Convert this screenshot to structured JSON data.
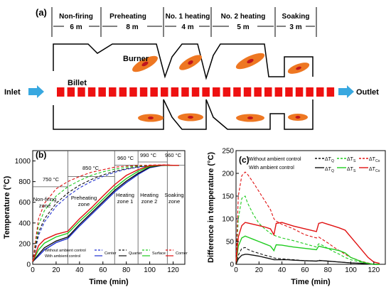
{
  "panel_a": {
    "label": "(a)",
    "zones": [
      {
        "name": "Non-firing",
        "length": "6 m"
      },
      {
        "name": "Preheating",
        "length": "8 m"
      },
      {
        "name": "No. 1 heating",
        "length": "4 m"
      },
      {
        "name": "No. 2 heating",
        "length": "5 m"
      },
      {
        "name": "Soaking",
        "length": "3 m"
      }
    ],
    "burner_label": "Burner",
    "billet_label": "Billet",
    "inlet_label": "Inlet",
    "outlet_label": "Outlet",
    "colors": {
      "billet": "#ee1111",
      "flame": "#ee7722",
      "arrow": "#38a8e0"
    }
  },
  "chart_data": [
    {
      "type": "line",
      "panel_label": "(b)",
      "xlabel": "Time (min)",
      "ylabel": "Temperature (°C)",
      "xlim": [
        0,
        130
      ],
      "ylim": [
        0,
        1100
      ],
      "xticks": [
        0,
        20,
        40,
        60,
        80,
        100,
        120
      ],
      "yticks": [
        0,
        200,
        400,
        600,
        800,
        1000
      ],
      "zone_dividers": [
        30,
        70,
        90,
        115
      ],
      "zone_labels": [
        {
          "line1": "Non-firing",
          "line2": "zone"
        },
        {
          "line1": "Preheating",
          "line2": "zone"
        },
        {
          "line1": "Heating",
          "line2": "zone 1"
        },
        {
          "line1": "Heating",
          "line2": "zone 2"
        },
        {
          "line1": "Soaking",
          "line2": "zone"
        }
      ],
      "setpoint_labels": [
        "750 °C",
        "850 °C",
        "960 °C",
        "990 °C",
        "960 °C"
      ],
      "setpoints": [
        {
          "from": 0,
          "to": 30,
          "value": 750
        },
        {
          "from": 30,
          "to": 70,
          "value": 850
        },
        {
          "from": 70,
          "to": 90,
          "value": 960
        },
        {
          "from": 90,
          "to": 115,
          "value": 990
        },
        {
          "from": 115,
          "to": 130,
          "value": 960
        }
      ],
      "legend": {
        "row1": "Without ambient control",
        "row2": "With ambient control",
        "entries": [
          "Center",
          "Quarter",
          "Surface",
          "Corner"
        ]
      },
      "x": [
        0,
        5,
        10,
        20,
        30,
        40,
        50,
        60,
        70,
        80,
        90,
        100,
        110,
        115,
        120,
        125
      ],
      "series": [
        {
          "name": "Center",
          "group": "Without ambient control",
          "color": "#1f2fd0",
          "dash": true,
          "values": [
            25,
            280,
            410,
            560,
            660,
            740,
            800,
            850,
            890,
            920,
            940,
            952,
            958,
            960,
            958,
            958
          ]
        },
        {
          "name": "Quarter",
          "group": "Without ambient control",
          "color": "#111111",
          "dash": true,
          "values": [
            25,
            310,
            440,
            590,
            690,
            765,
            820,
            865,
            900,
            925,
            943,
            953,
            958,
            960,
            958,
            958
          ]
        },
        {
          "name": "Surface",
          "group": "Without ambient control",
          "color": "#1fcc1f",
          "dash": true,
          "values": [
            25,
            380,
            520,
            660,
            750,
            810,
            860,
            895,
            920,
            940,
            950,
            956,
            960,
            960,
            958,
            958
          ]
        },
        {
          "name": "Corner",
          "group": "Without ambient control",
          "color": "#e01010",
          "dash": true,
          "values": [
            25,
            440,
            590,
            730,
            800,
            850,
            890,
            915,
            940,
            950,
            956,
            960,
            962,
            962,
            958,
            958
          ]
        },
        {
          "name": "Center",
          "group": "With ambient control",
          "color": "#1f2fd0",
          "dash": false,
          "values": [
            25,
            80,
            140,
            210,
            250,
            370,
            480,
            590,
            700,
            790,
            870,
            935,
            955,
            958,
            958,
            958
          ]
        },
        {
          "name": "Quarter",
          "group": "With ambient control",
          "color": "#111111",
          "dash": false,
          "values": [
            25,
            95,
            160,
            225,
            265,
            385,
            495,
            605,
            715,
            805,
            880,
            940,
            957,
            958,
            958,
            958
          ]
        },
        {
          "name": "Surface",
          "group": "With ambient control",
          "color": "#1fcc1f",
          "dash": false,
          "values": [
            25,
            140,
            205,
            265,
            300,
            415,
            520,
            630,
            740,
            830,
            900,
            948,
            958,
            958,
            958,
            958
          ]
        },
        {
          "name": "Corner",
          "group": "With ambient control",
          "color": "#e01010",
          "dash": false,
          "values": [
            25,
            180,
            240,
            290,
            320,
            440,
            545,
            660,
            770,
            860,
            915,
            955,
            960,
            960,
            958,
            958
          ]
        }
      ]
    },
    {
      "type": "line",
      "panel_label": "(c)",
      "xlabel": "Time (min)",
      "ylabel": "Difference in temperature (°C)",
      "xlim": [
        0,
        130
      ],
      "ylim": [
        0,
        250
      ],
      "xticks": [
        0,
        20,
        40,
        60,
        80,
        100,
        120
      ],
      "yticks": [
        0,
        50,
        100,
        150,
        200,
        250
      ],
      "legend": {
        "row1": "Without ambient control",
        "row2": "With ambient control",
        "entries": [
          "ΔT",
          "ΔT",
          "ΔT"
        ],
        "subscripts": [
          "Q",
          "S",
          "Co"
        ]
      },
      "x": [
        0,
        2,
        5,
        8,
        10,
        15,
        20,
        25,
        30,
        33,
        35,
        40,
        45,
        50,
        60,
        70,
        72,
        75,
        80,
        85,
        90,
        95,
        100,
        110,
        115,
        120,
        125
      ],
      "series": [
        {
          "name": "ΔT_Q",
          "group": "Without ambient control",
          "color": "#111111",
          "dash": true,
          "values": [
            0,
            20,
            35,
            37,
            33,
            28,
            24,
            20,
            17,
            14,
            13,
            12,
            11,
            10,
            8,
            7,
            9,
            8,
            7,
            6,
            5,
            4,
            3,
            2,
            1,
            0,
            0
          ]
        },
        {
          "name": "ΔT_S",
          "group": "Without ambient control",
          "color": "#1fcc1f",
          "dash": true,
          "values": [
            0,
            100,
            145,
            150,
            135,
            110,
            90,
            78,
            68,
            64,
            62,
            58,
            55,
            52,
            45,
            38,
            45,
            42,
            35,
            28,
            22,
            15,
            10,
            4,
            2,
            0,
            0
          ]
        },
        {
          "name": "ΔT_Co",
          "group": "Without ambient control",
          "color": "#e01010",
          "dash": true,
          "values": [
            0,
            150,
            195,
            203,
            198,
            180,
            160,
            140,
            120,
            100,
            95,
            88,
            83,
            78,
            65,
            58,
            60,
            55,
            47,
            38,
            30,
            22,
            15,
            6,
            3,
            0,
            0
          ]
        },
        {
          "name": "ΔT_Q",
          "group": "With ambient control",
          "color": "#111111",
          "dash": false,
          "values": [
            0,
            12,
            20,
            22,
            22,
            20,
            18,
            15,
            12,
            10,
            10,
            10,
            10,
            9,
            8,
            7,
            8,
            8,
            7,
            6,
            5,
            4,
            3,
            2,
            1,
            0,
            0
          ]
        },
        {
          "name": "ΔT_S",
          "group": "With ambient control",
          "color": "#1fcc1f",
          "dash": false,
          "values": [
            0,
            40,
            58,
            62,
            60,
            55,
            50,
            45,
            40,
            30,
            43,
            42,
            40,
            38,
            35,
            32,
            40,
            38,
            35,
            33,
            30,
            25,
            15,
            5,
            2,
            0,
            0
          ]
        },
        {
          "name": "ΔT_Co",
          "group": "With ambient control",
          "color": "#e01010",
          "dash": false,
          "values": [
            0,
            60,
            85,
            92,
            91,
            88,
            85,
            82,
            78,
            65,
            90,
            92,
            88,
            84,
            78,
            72,
            90,
            92,
            88,
            84,
            80,
            75,
            60,
            30,
            15,
            5,
            2
          ]
        }
      ]
    }
  ]
}
